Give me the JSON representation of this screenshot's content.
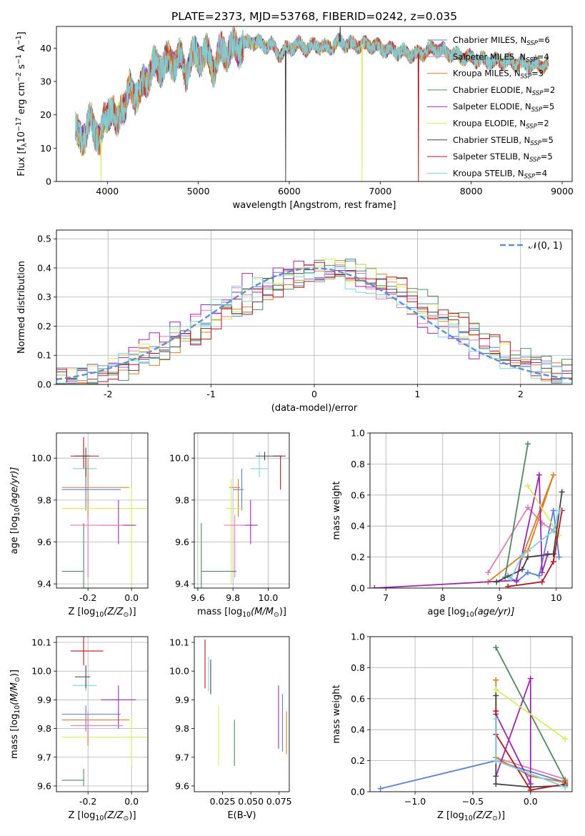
{
  "title": "PLATE=2373, MJD=53768, FIBERID=0242, z=0.035",
  "colors": {
    "series": [
      "#5b7fd9",
      "#e77bb6",
      "#e07b22",
      "#4f8a5f",
      "#9b27b0",
      "#d7ec5e",
      "#444444",
      "#b5161e",
      "#7dd3e0"
    ],
    "normal": "#5b8ddb"
  },
  "legend_labels": [
    [
      "Chabrier MILES, N",
      "SSP",
      "=6"
    ],
    [
      "Salpeter MILES, N",
      "SSP",
      "=4"
    ],
    [
      "Kroupa MILES, N",
      "SSP",
      "=3"
    ],
    [
      "Chabrier ELODIE, N",
      "SSP",
      "=2"
    ],
    [
      "Salpeter ELODIE, N",
      "SSP",
      "=5"
    ],
    [
      "Kroupa ELODIE, N",
      "SSP",
      "=2"
    ],
    [
      "Chabrier STELIB, N",
      "SSP",
      "=5"
    ],
    [
      "Salpeter STELIB, N",
      "SSP",
      "=5"
    ],
    [
      "Kroupa STELIB, N",
      "SSP",
      "=4"
    ]
  ],
  "chart_data": [
    {
      "id": "spectrum",
      "type": "line",
      "xlabel": "wavelength [Angstrom, rest frame]",
      "ylabel_parts": [
        "Flux [f",
        "λ",
        "10",
        "−17",
        " erg cm",
        "−2",
        " s",
        "−1",
        " A",
        "−1",
        "]"
      ],
      "xlim": [
        3440,
        9110
      ],
      "ylim": [
        0,
        46.5
      ],
      "xticks": [
        4000,
        5000,
        6000,
        7000,
        8000,
        9000
      ],
      "yticks": [
        0,
        10,
        20,
        30,
        40
      ],
      "grid": false,
      "legend": "upper-right",
      "continuum": {
        "x": [
          3650,
          3700,
          3760,
          3820,
          3870,
          3920,
          3970,
          4010,
          4060,
          4100,
          4150,
          4200,
          4250,
          4300,
          4350,
          4400,
          4450,
          4500,
          4600,
          4700,
          4800,
          4861,
          4920,
          5000,
          5100,
          5175,
          5250,
          5400,
          5500,
          5600,
          5700,
          5800,
          5893,
          6000,
          6100,
          6200,
          6300,
          6400,
          6500,
          6563,
          6650,
          6800,
          6900,
          7000,
          7200,
          7400,
          7600,
          7800,
          8000,
          8200,
          8400,
          8600,
          8800
        ],
        "y": [
          14,
          15,
          13,
          19,
          16,
          11,
          19,
          22,
          21,
          16,
          24,
          22,
          28,
          27,
          25,
          30,
          32,
          34,
          35,
          36,
          37,
          33,
          37,
          38,
          38,
          34,
          39,
          40,
          41,
          42,
          41,
          41,
          38,
          40,
          41,
          40,
          41,
          40,
          41,
          42,
          41,
          41,
          41,
          40,
          39,
          38,
          40,
          38,
          37,
          36,
          36,
          35,
          35
        ]
      },
      "spikes": [
        {
          "series": 5,
          "x": 3930,
          "y": 0
        },
        {
          "series": 6,
          "x": 5960,
          "y": 0
        },
        {
          "series": 5,
          "x": 6800,
          "y": 0
        },
        {
          "series": 7,
          "x": 7420,
          "y": 0
        },
        {
          "series": 6,
          "x": 6560,
          "y": 46.5
        }
      ]
    },
    {
      "id": "residuals",
      "type": "line",
      "xlabel": "(data-model)/error",
      "ylabel": "Normed distribution",
      "xlim": [
        -2.5,
        2.5
      ],
      "ylim": [
        0,
        0.53
      ],
      "xticks": [
        -2,
        -1,
        0,
        1,
        2
      ],
      "yticks": [
        0.0,
        0.1,
        0.2,
        0.3,
        0.4,
        0.5
      ],
      "grid": true,
      "legend": "upper-right",
      "legend_label": "𝒩(0, 1)",
      "bin_width": 0.1
    },
    {
      "id": "z-vs-age",
      "type": "scatter",
      "xlabel_parts": [
        "Z [log",
        "10",
        "(Z/Z",
        "⊙",
        ")]"
      ],
      "ylabel_parts": [
        "age  [log",
        "10",
        "(age/yr)]"
      ],
      "xlim": [
        -0.345,
        0.075
      ],
      "ylim": [
        9.38,
        10.12
      ],
      "xticks": [
        -0.2,
        0.0
      ],
      "yticks": [
        9.4,
        9.6,
        9.8,
        10.0
      ],
      "grid": true,
      "points": [
        {
          "s": 7,
          "x": -0.22,
          "y": 10.01,
          "xe": [
            0.06,
            0.07
          ],
          "ye": [
            0.06,
            0.09
          ]
        },
        {
          "s": 8,
          "x": -0.21,
          "y": 9.95,
          "xe": [
            0.06,
            0.05
          ],
          "ye": [
            0.12,
            0.05
          ]
        },
        {
          "s": 2,
          "x": -0.2,
          "y": 9.86,
          "xe": [
            0.12,
            0.19
          ],
          "ye": [
            0.14,
            0.14
          ]
        },
        {
          "s": 0,
          "x": -0.21,
          "y": 9.85,
          "xe": [
            0.11,
            0.16
          ],
          "ye": [
            0.1,
            0.1
          ]
        },
        {
          "s": 5,
          "x": 0.0,
          "y": 9.76,
          "xe": [
            0.32,
            0.07
          ],
          "ye": [
            0.36,
            0.1
          ]
        },
        {
          "s": 4,
          "x": -0.06,
          "y": 9.68,
          "xe": [
            0.08,
            0.08
          ],
          "ye": [
            0.09,
            0.12
          ]
        },
        {
          "s": 1,
          "x": -0.2,
          "y": 9.68,
          "xe": [
            0.08,
            0.16
          ],
          "ye": [
            0.25,
            0.05
          ]
        },
        {
          "s": 3,
          "x": -0.22,
          "y": 9.46,
          "xe": [
            0.1,
            0.0
          ],
          "ye": [
            0.08,
            0.23
          ]
        },
        {
          "s": 6,
          "x": -0.21,
          "y": 10.01,
          "xe": [
            0.05,
            0.02
          ],
          "ye": [
            0.1,
            0.04
          ]
        }
      ]
    },
    {
      "id": "mass-vs-age",
      "type": "scatter",
      "xlabel_parts": [
        "mass [log",
        "10",
        "(M/M",
        "⊙",
        ")]"
      ],
      "ylabel": "",
      "xlim": [
        9.58,
        10.12
      ],
      "ylim": [
        9.38,
        10.12
      ],
      "xticks": [
        9.6,
        9.8,
        10.0
      ],
      "yticks": [
        9.4,
        9.6,
        9.8,
        10.0
      ],
      "grid": true,
      "points": [
        {
          "s": 7,
          "x": 10.07,
          "y": 10.01,
          "xe": [
            0.04,
            0.03
          ],
          "ye": [
            0.16,
            0.0
          ]
        },
        {
          "s": 8,
          "x": 9.95,
          "y": 9.95,
          "xe": [
            0.05,
            0.05
          ],
          "ye": [
            0.04,
            0.08
          ]
        },
        {
          "s": 2,
          "x": 9.83,
          "y": 9.86,
          "xe": [
            0.05,
            0.01
          ],
          "ye": [
            0.14,
            0.04
          ]
        },
        {
          "s": 0,
          "x": 9.85,
          "y": 9.85,
          "xe": [
            0.05,
            0.01
          ],
          "ye": [
            0.1,
            0.1
          ]
        },
        {
          "s": 5,
          "x": 9.79,
          "y": 9.76,
          "xe": [
            0.03,
            0.07
          ],
          "ye": [
            0.36,
            0.14
          ]
        },
        {
          "s": 4,
          "x": 9.9,
          "y": 9.68,
          "xe": [
            0.06,
            0.04
          ],
          "ye": [
            0.09,
            0.12
          ]
        },
        {
          "s": 1,
          "x": 9.81,
          "y": 9.68,
          "xe": [
            0.06,
            0.06
          ],
          "ye": [
            0.25,
            0.05
          ]
        },
        {
          "s": 3,
          "x": 9.62,
          "y": 9.46,
          "xe": [
            0.0,
            0.2
          ],
          "ye": [
            0.1,
            0.23
          ]
        },
        {
          "s": 6,
          "x": 9.98,
          "y": 10.01,
          "xe": [
            0.05,
            0.1
          ],
          "ye": [
            0.02,
            0.02
          ]
        }
      ]
    },
    {
      "id": "age-vs-massweight",
      "type": "line",
      "xlabel_parts": [
        "age  [log",
        "10",
        "(age/yr)]"
      ],
      "ylabel": "mass weight",
      "xlim": [
        6.72,
        10.28
      ],
      "ylim": [
        0,
        1
      ],
      "xticks": [
        7,
        8,
        9,
        10
      ],
      "yticks": [
        0.0,
        0.2,
        0.4,
        0.6,
        0.8,
        1.0
      ],
      "grid": true,
      "series": [
        {
          "s": 0,
          "x": [
            9.15,
            9.3,
            9.5,
            9.7,
            9.95,
            10.05
          ],
          "y": [
            0.08,
            0.04,
            0.1,
            0.08,
            0.5,
            0.2
          ]
        },
        {
          "s": 1,
          "x": [
            8.8,
            9.5,
            9.75,
            10.0
          ],
          "y": [
            0.1,
            0.52,
            0.42,
            0.36
          ]
        },
        {
          "s": 2,
          "x": [
            8.8,
            9.5,
            9.95,
            9.4
          ],
          "y": [
            0.04,
            0.24,
            0.73,
            0.2
          ]
        },
        {
          "s": 3,
          "x": [
            9.1,
            9.5
          ],
          "y": [
            0.07,
            0.93
          ]
        },
        {
          "s": 4,
          "x": [
            6.8,
            9.3,
            9.7,
            9.75,
            9.85
          ],
          "y": [
            0.0,
            0.05,
            0.73,
            0.1,
            0.22
          ]
        },
        {
          "s": 5,
          "x": [
            9.5,
            10.05
          ],
          "y": [
            0.66,
            0.34
          ]
        },
        {
          "s": 6,
          "x": [
            8.95,
            9.4,
            9.5,
            9.95,
            10.1
          ],
          "y": [
            0.04,
            0.12,
            0.2,
            0.22,
            0.62
          ]
        },
        {
          "s": 7,
          "x": [
            9.15,
            9.75,
            9.95,
            10.1
          ],
          "y": [
            0.01,
            0.04,
            0.17,
            0.5
          ]
        },
        {
          "s": 8,
          "x": [
            9.2,
            9.4,
            9.95,
            10.05
          ],
          "y": [
            0.06,
            0.21,
            0.37,
            0.5
          ]
        }
      ]
    },
    {
      "id": "z-vs-mass",
      "type": "scatter",
      "xlabel_parts": [
        "Z [log",
        "10",
        "(Z/Z",
        "⊙",
        ")]"
      ],
      "ylabel_parts": [
        "mass [log",
        "10",
        "(M/M",
        "⊙",
        ")]"
      ],
      "xlim": [
        -0.345,
        0.075
      ],
      "ylim": [
        9.58,
        10.12
      ],
      "xticks": [
        -0.2,
        0.0
      ],
      "yticks": [
        9.6,
        9.7,
        9.8,
        9.9,
        10.0,
        10.1
      ],
      "grid": true,
      "points": [
        {
          "s": 7,
          "x": -0.22,
          "y": 10.07,
          "xe": [
            0.06,
            0.09
          ],
          "ye": [
            0.05,
            0.05
          ]
        },
        {
          "s": 8,
          "x": -0.21,
          "y": 9.95,
          "xe": [
            0.06,
            0.05
          ],
          "ye": [
            0.02,
            0.02
          ]
        },
        {
          "s": 2,
          "x": -0.2,
          "y": 9.83,
          "xe": [
            0.12,
            0.19
          ],
          "ye": [
            0.09,
            0.02
          ]
        },
        {
          "s": 0,
          "x": -0.21,
          "y": 9.85,
          "xe": [
            0.11,
            0.16
          ],
          "ye": [
            0.06,
            0.03
          ]
        },
        {
          "s": 5,
          "x": 0.0,
          "y": 9.77,
          "xe": [
            0.32,
            0.07
          ],
          "ye": [
            0.1,
            0.07
          ]
        },
        {
          "s": 4,
          "x": -0.06,
          "y": 9.9,
          "xe": [
            0.08,
            0.08
          ],
          "ye": [
            0.1,
            0.05
          ]
        },
        {
          "s": 1,
          "x": -0.2,
          "y": 9.81,
          "xe": [
            0.08,
            0.16
          ],
          "ye": [
            0.06,
            0.05
          ]
        },
        {
          "s": 3,
          "x": -0.22,
          "y": 9.62,
          "xe": [
            0.1,
            0.0
          ],
          "ye": [
            0.02,
            0.04
          ]
        },
        {
          "s": 6,
          "x": -0.21,
          "y": 9.98,
          "xe": [
            0.05,
            0.02
          ],
          "ye": [
            0.04,
            0.04
          ]
        }
      ]
    },
    {
      "id": "ebv-vs-mass",
      "type": "scatter",
      "xlabel": "E(B-V)",
      "ylabel": "",
      "xlim": [
        0.0,
        0.084
      ],
      "ylim": [
        9.58,
        10.12
      ],
      "xticks": [
        0.025,
        0.05,
        0.075
      ],
      "xtick_labels": [
        "0.025",
        "0.050",
        "0.075"
      ],
      "yticks": [
        9.6,
        9.7,
        9.8,
        9.9,
        10.0,
        10.1
      ],
      "grid": false,
      "points": [
        {
          "s": 7,
          "x": 0.0095,
          "y": 10.03,
          "xe": [
            0,
            0
          ],
          "ye": [
            0.09,
            0.08
          ]
        },
        {
          "s": 8,
          "x": 0.0125,
          "y": 9.99,
          "xe": [
            0,
            0
          ],
          "ye": [
            0.06,
            0.06
          ]
        },
        {
          "s": 6,
          "x": 0.0145,
          "y": 10.0,
          "xe": [
            0,
            0
          ],
          "ye": [
            0.08,
            0.04
          ]
        },
        {
          "s": 5,
          "x": 0.0215,
          "y": 9.77,
          "xe": [
            0,
            0
          ],
          "ye": [
            0.1,
            0.11
          ]
        },
        {
          "s": 3,
          "x": 0.0355,
          "y": 9.75,
          "xe": [
            0,
            0
          ],
          "ye": [
            0.08,
            0.08
          ]
        },
        {
          "s": 4,
          "x": 0.0745,
          "y": 9.85,
          "xe": [
            0,
            0
          ],
          "ye": [
            0.12,
            0.1
          ]
        },
        {
          "s": 0,
          "x": 0.078,
          "y": 9.82,
          "xe": [
            0,
            0
          ],
          "ye": [
            0.1,
            0.1
          ]
        },
        {
          "s": 2,
          "x": 0.0815,
          "y": 9.79,
          "xe": [
            0,
            0
          ],
          "ye": [
            0.08,
            0.07
          ]
        }
      ]
    },
    {
      "id": "z-vs-massweight",
      "type": "line",
      "xlabel_parts": [
        "Z [log",
        "10",
        "(Z/Z",
        "⊙",
        ")]"
      ],
      "ylabel": "mass weight",
      "xlim": [
        -1.39,
        0.36
      ],
      "ylim": [
        0,
        1
      ],
      "xticks": [
        -1.0,
        -0.5,
        0.0
      ],
      "yticks": [
        0.0,
        0.2,
        0.4,
        0.6,
        0.8,
        1.0
      ],
      "grid": true,
      "series": [
        {
          "s": 0,
          "x": [
            -1.3,
            -0.3,
            0.3
          ],
          "y": [
            0.02,
            0.2,
            0.06
          ]
        },
        {
          "s": 1,
          "x": [
            -0.3,
            0.3
          ],
          "y": [
            0.22,
            0.08
          ]
        },
        {
          "s": 2,
          "x": [
            -0.3,
            -0.3,
            0.0,
            0.3
          ],
          "y": [
            0.72,
            0.22,
            0.1,
            0.06
          ]
        },
        {
          "s": 3,
          "x": [
            -0.3,
            0.3
          ],
          "y": [
            0.93,
            0.07
          ]
        },
        {
          "s": 4,
          "x": [
            -0.3,
            0.0,
            0.0,
            -0.3
          ],
          "y": [
            0.1,
            0.73,
            0.05,
            0.5
          ]
        },
        {
          "s": 5,
          "x": [
            -0.3,
            0.3
          ],
          "y": [
            0.66,
            0.34
          ]
        },
        {
          "s": 6,
          "x": [
            -0.3,
            -0.3,
            0.0,
            0.3
          ],
          "y": [
            0.62,
            0.05,
            0.03,
            0.04
          ]
        },
        {
          "s": 7,
          "x": [
            -0.3,
            -0.3,
            0.0,
            0.3
          ],
          "y": [
            0.52,
            0.37,
            0.01,
            0.05
          ]
        },
        {
          "s": 8,
          "x": [
            -0.3,
            -0.3,
            0.3
          ],
          "y": [
            0.47,
            0.2,
            0.03
          ]
        }
      ]
    }
  ]
}
